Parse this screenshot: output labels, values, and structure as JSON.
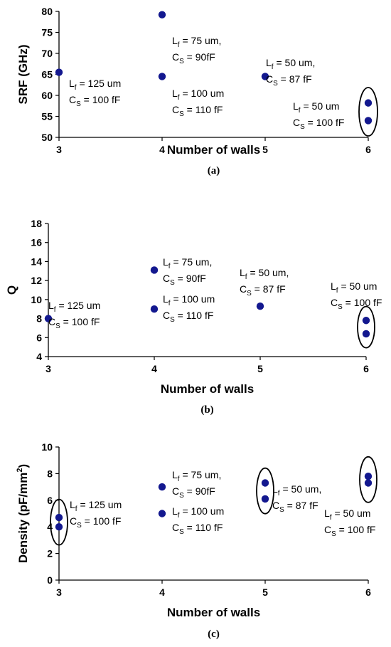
{
  "chart_data": [
    {
      "type": "scatter",
      "caption": "(a)",
      "xlabel": "Number of walls",
      "ylabel": "SRF (GHz)",
      "xlim": [
        3,
        6
      ],
      "ylim": [
        50,
        80
      ],
      "xticks": [
        "3",
        "4",
        "5",
        "6"
      ],
      "yticks": [
        "50",
        "55",
        "60",
        "65",
        "70",
        "75",
        "80"
      ],
      "marker_color": "#13188f",
      "points": [
        {
          "x": 3,
          "y": 65.5
        },
        {
          "x": 4,
          "y": 79.2
        },
        {
          "x": 4,
          "y": 64.5
        },
        {
          "x": 5,
          "y": 64.5
        },
        {
          "x": 6,
          "y": 58.2
        },
        {
          "x": 6,
          "y": 54
        }
      ],
      "ellipses": [
        {
          "x": 6,
          "y": 56.1
        }
      ],
      "annotations": [
        {
          "lines": [
            [
              "L",
              "f",
              " = 125 um"
            ],
            [
              "C",
              "S",
              " = 100 fF"
            ]
          ]
        },
        {
          "lines": [
            [
              "L",
              "f",
              " = 75 um,"
            ],
            [
              "C",
              "S",
              " = 90fF"
            ]
          ]
        },
        {
          "lines": [
            [
              "L",
              "f",
              " = 100 um"
            ],
            [
              "C",
              "S",
              " = 110 fF"
            ]
          ]
        },
        {
          "lines": [
            [
              "L",
              "f",
              " = 50 um,"
            ],
            [
              "C",
              "S",
              " = 87 fF"
            ]
          ]
        },
        {
          "lines": [
            [
              "L",
              "f",
              " = 50 um"
            ],
            [
              "C",
              "S",
              " = 100 fF"
            ]
          ]
        }
      ]
    },
    {
      "type": "scatter",
      "caption": "(b)",
      "xlabel": "Number of walls",
      "ylabel": "Q",
      "xlim": [
        3,
        6
      ],
      "ylim": [
        4,
        18
      ],
      "xticks": [
        "3",
        "4",
        "5",
        "6"
      ],
      "yticks": [
        "4",
        "6",
        "8",
        "10",
        "12",
        "14",
        "16",
        "18"
      ],
      "marker_color": "#13188f",
      "points": [
        {
          "x": 3,
          "y": 8
        },
        {
          "x": 4,
          "y": 13.1
        },
        {
          "x": 4,
          "y": 9
        },
        {
          "x": 5,
          "y": 9.3
        },
        {
          "x": 6,
          "y": 7.8
        },
        {
          "x": 6,
          "y": 6.4
        }
      ],
      "ellipses": [
        {
          "x": 6,
          "y": 7.1
        }
      ],
      "annotations": [
        {
          "lines": [
            [
              "L",
              "f",
              " = 125 um"
            ],
            [
              "C",
              "S",
              " = 100 fF"
            ]
          ]
        },
        {
          "lines": [
            [
              "L",
              "f",
              " = 75 um,"
            ],
            [
              "C",
              "S",
              " = 90fF"
            ]
          ]
        },
        {
          "lines": [
            [
              "L",
              "f",
              " = 100 um"
            ],
            [
              "C",
              "S",
              " = 110 fF"
            ]
          ]
        },
        {
          "lines": [
            [
              "L",
              "f",
              " = 50 um,"
            ],
            [
              "C",
              "S",
              " = 87 fF"
            ]
          ]
        },
        {
          "lines": [
            [
              "L",
              "f",
              " = 50 um"
            ],
            [
              "C",
              "S",
              " = 100 fF"
            ]
          ]
        }
      ]
    },
    {
      "type": "scatter",
      "caption": "(c)",
      "xlabel": "Number of walls",
      "ylabel": "Density (pF/mm",
      "ylabel_sup": "2",
      "ylabel_end": ")",
      "xlim": [
        3,
        6
      ],
      "ylim": [
        0,
        10
      ],
      "xticks": [
        "3",
        "4",
        "5",
        "6"
      ],
      "yticks": [
        "0",
        "2",
        "4",
        "6",
        "8",
        "10"
      ],
      "marker_color": "#13188f",
      "points": [
        {
          "x": 3,
          "y": 4.7
        },
        {
          "x": 3,
          "y": 4
        },
        {
          "x": 4,
          "y": 7
        },
        {
          "x": 4,
          "y": 5
        },
        {
          "x": 5,
          "y": 7.3
        },
        {
          "x": 5,
          "y": 6.1
        },
        {
          "x": 6,
          "y": 7.8
        },
        {
          "x": 6,
          "y": 7.3
        }
      ],
      "ellipses": [
        {
          "x": 3,
          "y": 4.35
        },
        {
          "x": 5,
          "y": 6.7
        },
        {
          "x": 6,
          "y": 7.55
        }
      ],
      "annotations": [
        {
          "lines": [
            [
              "L",
              "f",
              " = 125 um"
            ],
            [
              "C",
              "S",
              " = 100 fF"
            ]
          ]
        },
        {
          "lines": [
            [
              "L",
              "f",
              " = 75 um,"
            ],
            [
              "C",
              "S",
              " = 90fF"
            ]
          ]
        },
        {
          "lines": [
            [
              "L",
              "f",
              " = 100 um"
            ],
            [
              "C",
              "S",
              " = 110 fF"
            ]
          ]
        },
        {
          "lines": [
            [
              "L",
              "f",
              " = 50 um,"
            ],
            [
              "C",
              "S",
              " = 87 fF"
            ]
          ]
        },
        {
          "lines": [
            [
              "L",
              "f",
              " = 50 um"
            ],
            [
              "C",
              "S",
              " = 100 fF"
            ]
          ]
        }
      ]
    }
  ]
}
